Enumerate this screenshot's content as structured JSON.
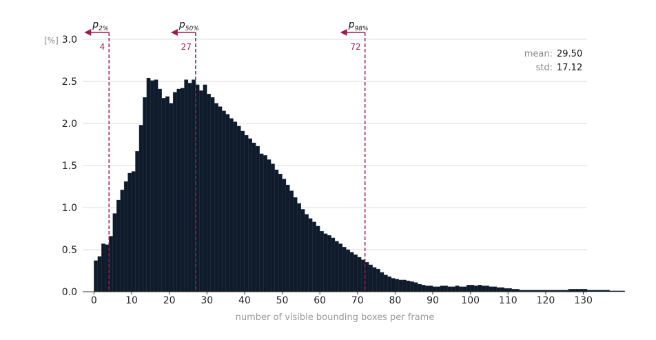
{
  "chart_data": {
    "type": "bar",
    "xlabel": "number of visible bounding boxes per frame",
    "y_unit": "[%]",
    "xlim": [
      -3,
      131
    ],
    "ylim": [
      0,
      3.0
    ],
    "xticks": [
      "0",
      "10",
      "20",
      "30",
      "40",
      "50",
      "60",
      "70",
      "80",
      "90",
      "100",
      "110",
      "120",
      "130"
    ],
    "yticks": [
      "0.0",
      "0.5",
      "1.0",
      "1.5",
      "2.0",
      "2.5",
      "3.0"
    ],
    "grid": "horizontal",
    "bin_width": 1,
    "x_start": 0,
    "values": [
      0.37,
      0.42,
      0.57,
      0.56,
      0.66,
      0.93,
      1.09,
      1.21,
      1.31,
      1.41,
      1.43,
      1.67,
      1.98,
      2.31,
      2.54,
      2.51,
      2.52,
      2.41,
      2.3,
      2.32,
      2.24,
      2.37,
      2.41,
      2.42,
      2.52,
      2.48,
      2.52,
      2.46,
      2.39,
      2.46,
      2.35,
      2.31,
      2.24,
      2.2,
      2.15,
      2.11,
      2.06,
      2.02,
      1.97,
      1.91,
      1.86,
      1.82,
      1.77,
      1.73,
      1.64,
      1.62,
      1.57,
      1.52,
      1.45,
      1.4,
      1.34,
      1.27,
      1.2,
      1.12,
      1.05,
      0.98,
      0.92,
      0.87,
      0.83,
      0.78,
      0.72,
      0.69,
      0.67,
      0.64,
      0.6,
      0.57,
      0.53,
      0.5,
      0.47,
      0.44,
      0.41,
      0.38,
      0.35,
      0.32,
      0.29,
      0.27,
      0.23,
      0.2,
      0.18,
      0.16,
      0.15,
      0.14,
      0.14,
      0.13,
      0.12,
      0.11,
      0.09,
      0.08,
      0.07,
      0.07,
      0.06,
      0.06,
      0.07,
      0.07,
      0.06,
      0.06,
      0.07,
      0.06,
      0.06,
      0.08,
      0.08,
      0.07,
      0.08,
      0.07,
      0.07,
      0.06,
      0.06,
      0.05,
      0.05,
      0.04,
      0.04,
      0.03,
      0.03,
      0.02,
      0.02,
      0.02,
      0.02,
      0.02,
      0.02,
      0.02,
      0.02,
      0.02,
      0.02,
      0.02,
      0.02,
      0.02,
      0.03,
      0.03,
      0.03,
      0.03,
      0.03,
      0.02,
      0.02,
      0.02,
      0.02,
      0.02,
      0.02,
      0.01,
      0.01,
      0.01,
      0.01
    ],
    "bar_color": "#0f1b2a",
    "marker_color": "#9b1d50",
    "percentiles": [
      {
        "label": "p",
        "sub": "2%",
        "value": 4,
        "value_text": "4"
      },
      {
        "label": "p",
        "sub": "50%",
        "value": 27,
        "value_text": "27"
      },
      {
        "label": "p",
        "sub": "98%",
        "value": 72,
        "value_text": "72"
      }
    ],
    "stats": [
      {
        "key": "mean:",
        "value": "29.50"
      },
      {
        "key": "std:",
        "value": "17.12"
      }
    ]
  }
}
